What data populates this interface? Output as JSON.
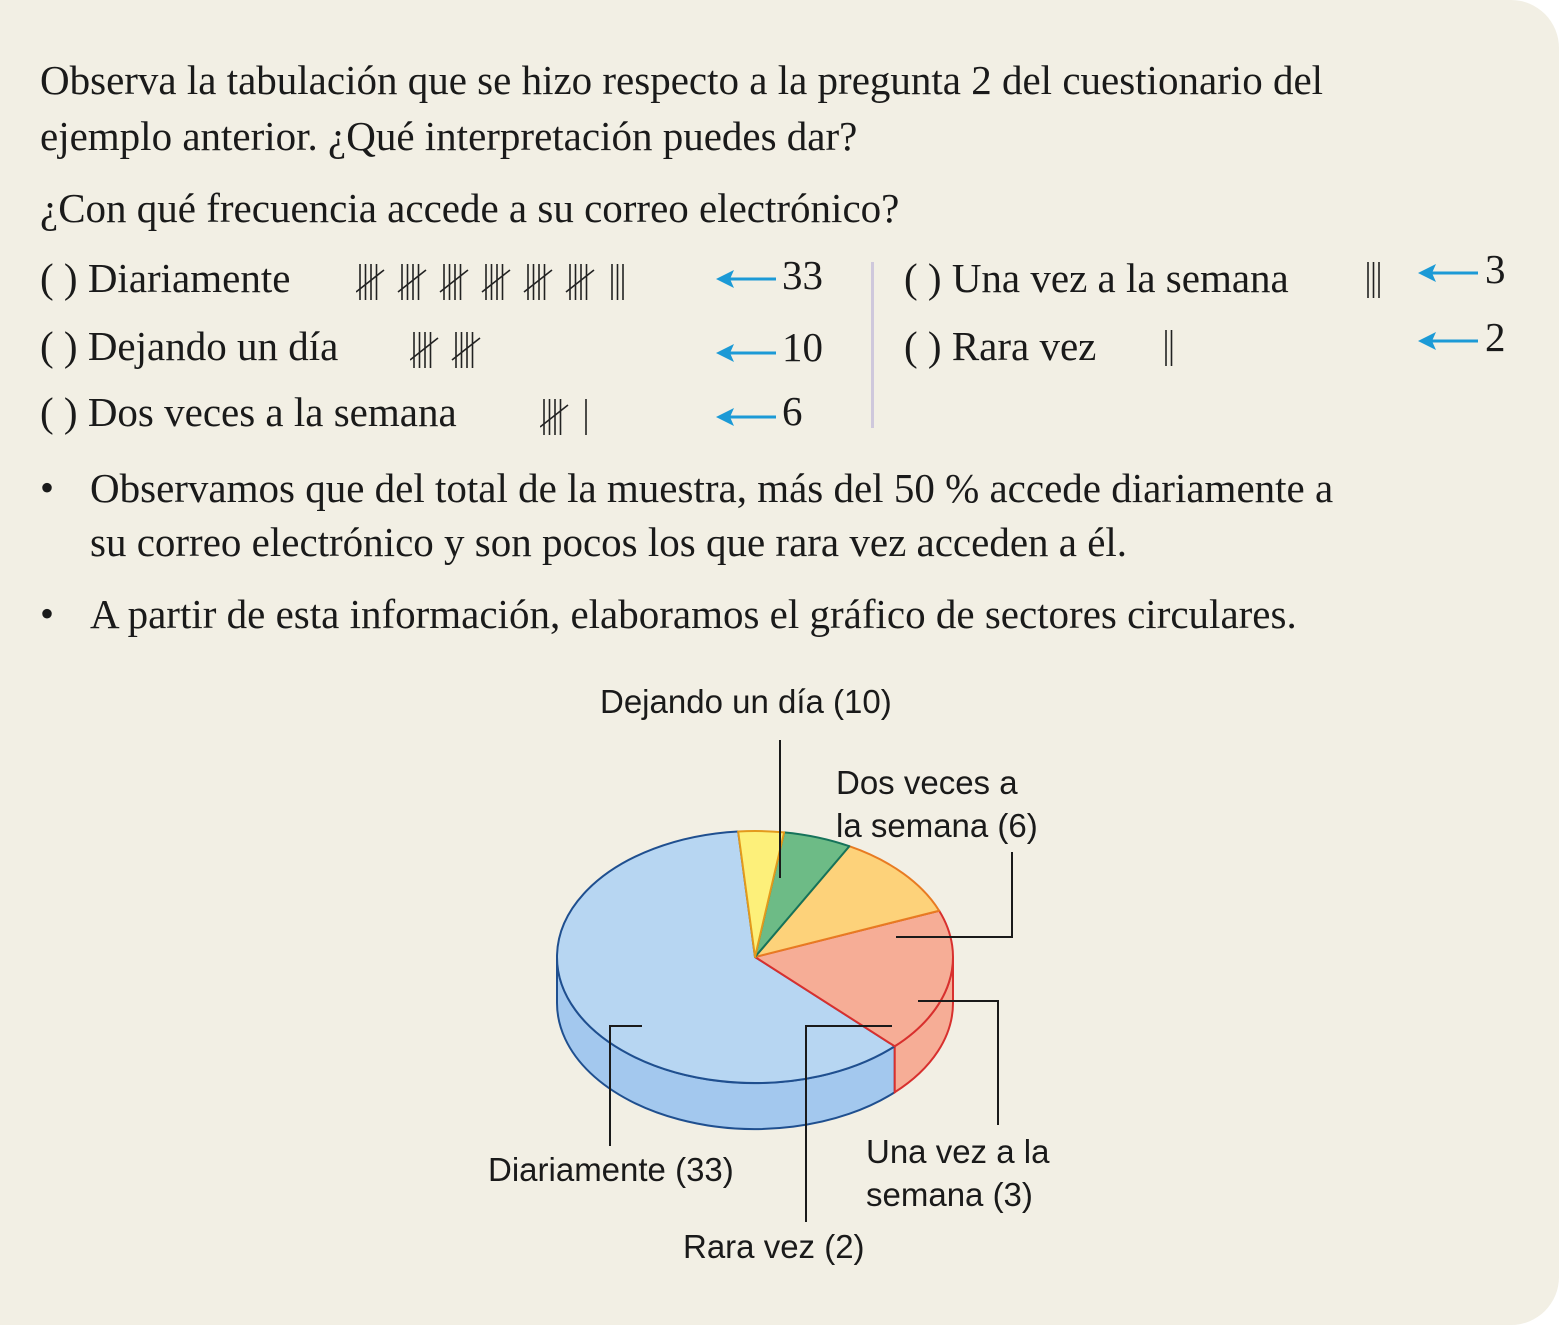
{
  "intro": {
    "line1": "Observa la tabulación que se hizo respecto a la pregunta 2 del cuestionario del",
    "line2": "ejemplo anterior. ¿Qué interpretación puedes dar?"
  },
  "question": "¿Con qué frecuencia accede a su correo electrónico?",
  "options": [
    {
      "paren": "(    )",
      "label": "Diariamente",
      "tally": 33,
      "count": "33"
    },
    {
      "paren": "(    )",
      "label": "Dejando un día",
      "tally": 10,
      "count": "10"
    },
    {
      "paren": "(    )",
      "label": "Dos veces a la semana",
      "tally": 6,
      "count": "6"
    },
    {
      "paren": "(    )",
      "label": "Una vez a la semana",
      "tally": 3,
      "count": "3"
    },
    {
      "paren": "(    )",
      "label": "Rara vez",
      "tally": 2,
      "count": "2"
    }
  ],
  "bullets": {
    "b1_line1": "Observamos que del total de la muestra, más del 50 % accede diariamente a",
    "b1_line2": "su correo electrónico y son pocos los que rara vez acceden a él.",
    "b2": "A partir de esta información, elaboramos el gráfico de sectores circulares.",
    "marker": "•"
  },
  "chart_data": {
    "type": "pie",
    "three_d": true,
    "categories": [
      "Diariamente",
      "Dejando un día",
      "Dos veces a la semana",
      "Una vez a la semana",
      "Rara vez"
    ],
    "values": [
      33,
      10,
      6,
      3,
      2
    ],
    "labels": {
      "diariamente": "Diariamente (33)",
      "dejando_un_dia": "Dejando un día (10)",
      "dos_veces_1": "Dos veces a",
      "dos_veces_2": "la semana (6)",
      "una_vez_1": "Una vez a la",
      "una_vez_2": "semana (3)",
      "rara_vez": "Rara vez (2)"
    },
    "colors": {
      "Diariamente": {
        "top": "#b7d6f2",
        "side": "#a3c8ee",
        "edge": "#1f4f8f"
      },
      "Dejando un día": {
        "top": "#f6ad96",
        "side": "#f6ad96",
        "edge": "#d8302e"
      },
      "Dos veces a la semana": {
        "top": "#fdd27a",
        "side": "#fcc46a",
        "edge": "#e87b22"
      },
      "Una vez a la semana": {
        "top": "#6dbb86",
        "side": "#2f9466",
        "edge": "#16735a"
      },
      "Rara vez": {
        "top": "#fdf07a",
        "side": "#fde85a",
        "edge": "#e39a1c"
      }
    },
    "arrow_color": "#1c9ad6"
  }
}
